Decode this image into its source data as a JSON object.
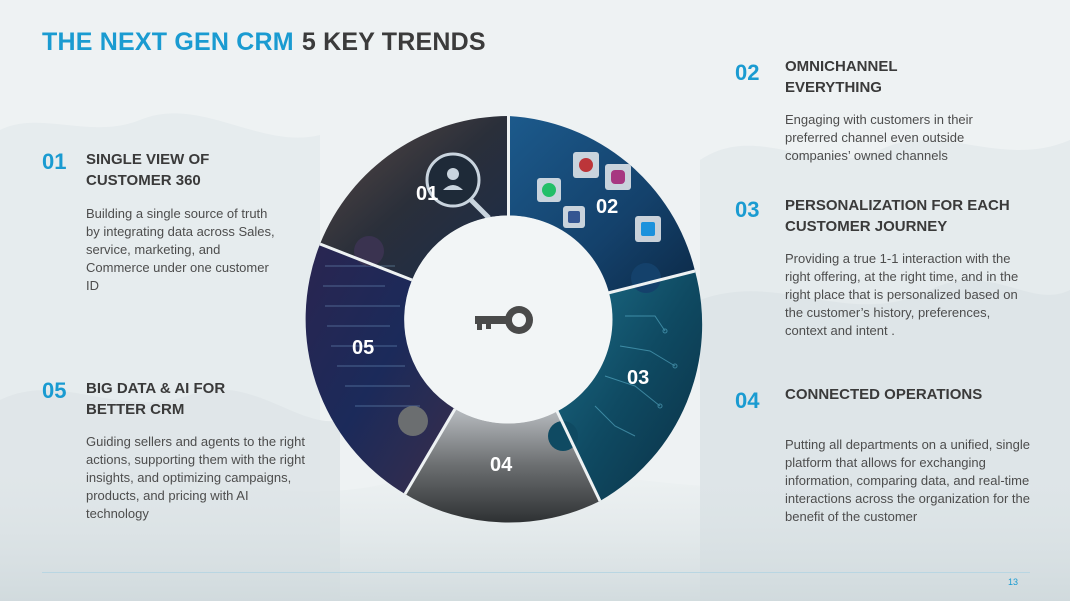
{
  "title": {
    "accent": "THE NEXT GEN CRM",
    "rest": "5 KEY TRENDS"
  },
  "trends": {
    "t01": {
      "number": "01",
      "heading": "SINGLE VIEW OF CUSTOMER 360",
      "description": "Building a single source of truth by integrating data across Sales, service, marketing, and Commerce under one customer ID"
    },
    "t02": {
      "number": "02",
      "heading": "OMNICHANNEL EVERYTHING",
      "description": "Engaging with customers in their preferred channel even outside companies’ owned channels"
    },
    "t03": {
      "number": "03",
      "heading": "PERSONALIZATION FOR EACH CUSTOMER JOURNEY",
      "description": "Providing a true 1-1 interaction with the  right offering, at the right time, and in the right place that is personalized based on the customer’s history, preferences, context and intent ."
    },
    "t04": {
      "number": "04",
      "heading": "CONNECTED OPERATIONS",
      "description": "Putting all departments on a unified, single  platform that allows for exchanging information, comparing data, and real-time interactions across the organization for the benefit of the customer"
    },
    "t05": {
      "number": "05",
      "heading": "BIG DATA & AI FOR BETTER CRM",
      "description": "Guiding sellers and agents to the right actions, supporting them with the right insights, and optimizing campaigns, products, and pricing with AI technology"
    }
  },
  "ring_labels": {
    "s01": "01",
    "s02": "02",
    "s03": "03",
    "s04": "04",
    "s05": "05"
  },
  "center_icon": "key-icon",
  "page_number": "13",
  "colors": {
    "accent": "#1a9bd1",
    "heading": "#3a3a3a",
    "background": "#eef2f3"
  }
}
